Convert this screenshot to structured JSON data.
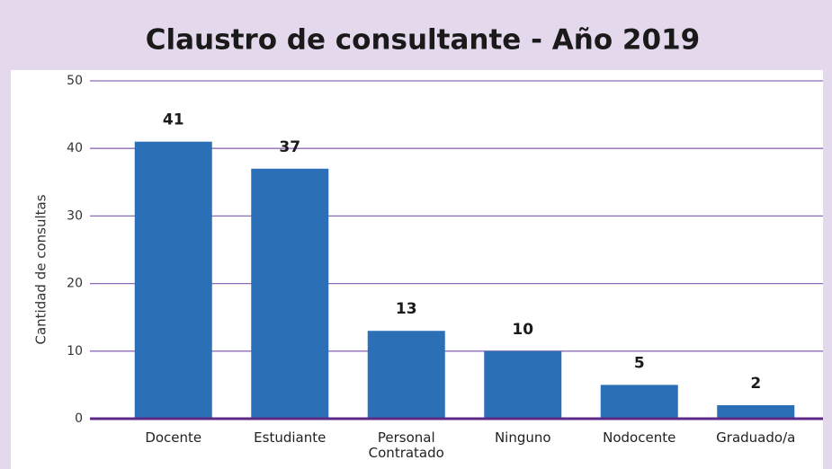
{
  "chart_data": {
    "type": "bar",
    "title": "Claustro de consultante - Año 2019",
    "y_label": "Cantidad de consultas",
    "categories": [
      "Docente",
      "Estudiante",
      "Personal Contratado",
      "Ninguno",
      "Nodocente",
      "Graduado/a"
    ],
    "values": [
      41,
      37,
      13,
      10,
      5,
      2
    ],
    "color": "#2b70b7",
    "ylim": [
      0,
      50
    ],
    "yticks": [
      0,
      10,
      20,
      30,
      40,
      50
    ],
    "grid": true
  }
}
